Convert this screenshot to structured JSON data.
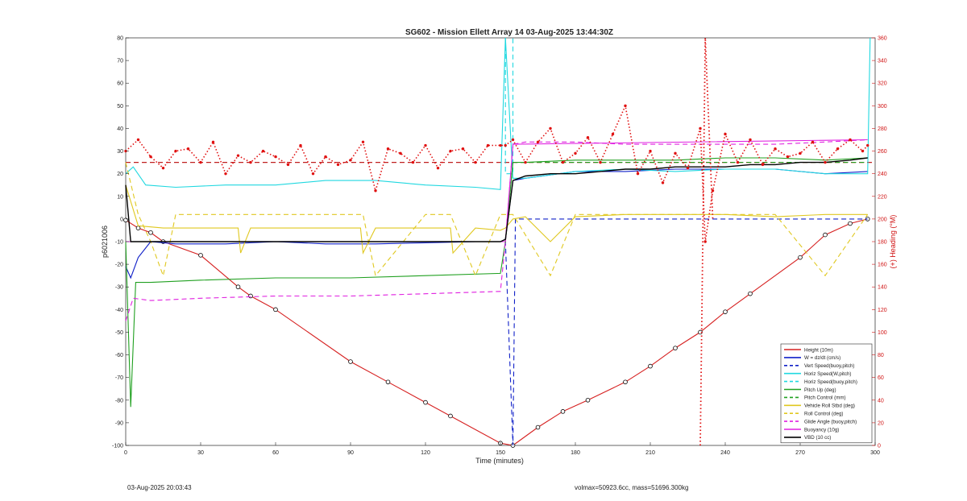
{
  "footer": {
    "timestamp": "03-Aug-2025 20:03:43",
    "vol_mass": "volmax=50923.6cc, mass=51696.300kg"
  },
  "chart_data": {
    "type": "line",
    "title": "SG602 - Mission Ellett Array 14 03-Aug-2025 13:44:30Z",
    "xlabel": "Time (minutes)",
    "ylabel": "p6021006",
    "y2label": "(+) Heading (°M)",
    "xlim": [
      0,
      300
    ],
    "ylim": [
      -100,
      80
    ],
    "y2lim": [
      0,
      360
    ],
    "xticks": [
      0,
      30,
      60,
      90,
      120,
      150,
      180,
      210,
      240,
      270,
      300
    ],
    "yticks": [
      -100,
      -90,
      -80,
      -70,
      -60,
      -50,
      -40,
      -30,
      -20,
      -10,
      0,
      10,
      20,
      30,
      40,
      50,
      60,
      70,
      80
    ],
    "y2ticks": [
      0,
      20,
      40,
      60,
      80,
      100,
      120,
      140,
      160,
      180,
      200,
      220,
      240,
      260,
      280,
      300,
      320,
      340,
      360
    ],
    "grid": false,
    "legend_position": "bottom-right",
    "series": [
      {
        "name": "Height (10m)",
        "color": "#d62020",
        "style": "solid",
        "markers": true,
        "x": [
          0,
          5,
          10,
          15,
          30,
          45,
          50,
          60,
          90,
          105,
          120,
          130,
          150,
          155,
          165,
          175,
          185,
          200,
          210,
          220,
          230,
          240,
          250,
          270,
          280,
          290,
          297
        ],
        "y": [
          -0.5,
          -4,
          -6,
          -10,
          -16,
          -30,
          -34,
          -40,
          -63,
          -72,
          -81,
          -87,
          -99,
          -100,
          -92,
          -85,
          -80,
          -72,
          -65,
          -57,
          -50,
          -41,
          -33,
          -17,
          -7,
          -2,
          0
        ]
      },
      {
        "name": "W = dz/dt (cm/s)",
        "color": "#1020c8",
        "style": "solid",
        "markers": false,
        "x": [
          0,
          2,
          5,
          10,
          20,
          40,
          60,
          80,
          100,
          120,
          140,
          150,
          152,
          155,
          160,
          180,
          200,
          220,
          240,
          260,
          280,
          297
        ],
        "y": [
          -21,
          -26,
          -17,
          -10,
          -11,
          -11,
          -10,
          -11,
          -11,
          -10.5,
          -10,
          -10,
          -9,
          17,
          18,
          21,
          21,
          22,
          22,
          22,
          20,
          21
        ]
      },
      {
        "name": "Vert Speed(buoy,pitch)",
        "color": "#1020c8",
        "style": "dashed",
        "markers": false,
        "x": [
          0,
          150,
          152,
          155,
          156,
          160,
          200,
          250,
          297
        ],
        "y": [
          -10,
          -10,
          -10,
          -100,
          0,
          0,
          0,
          0,
          0
        ]
      },
      {
        "name": "Horiz Speed(W,pitch)",
        "color": "#20d8e0",
        "style": "solid",
        "markers": false,
        "x": [
          0,
          3,
          8,
          20,
          40,
          60,
          80,
          100,
          120,
          140,
          150,
          152,
          155,
          160,
          180,
          200,
          220,
          240,
          260,
          280,
          297,
          298
        ],
        "y": [
          20,
          23,
          15,
          14,
          15,
          15,
          17,
          17,
          15,
          14,
          13,
          80,
          18,
          18,
          21,
          22,
          21,
          22,
          22,
          20,
          20,
          80
        ]
      },
      {
        "name": "Horiz Speed(buoy,pitch)",
        "color": "#20d8e0",
        "style": "dashed",
        "markers": false,
        "x": [
          152,
          152,
          153,
          155,
          155
        ],
        "y": [
          80,
          20,
          20,
          20,
          80
        ]
      },
      {
        "name": "Pitch Up (deg)",
        "color": "#20a020",
        "style": "solid",
        "markers": false,
        "x": [
          0,
          2,
          4,
          10,
          30,
          60,
          90,
          120,
          150,
          152,
          155,
          160,
          180,
          200,
          220,
          240,
          260,
          280,
          297
        ],
        "y": [
          -10,
          -83,
          -28,
          -28,
          -27,
          -26,
          -26,
          -25,
          -24,
          -10,
          25,
          25,
          26,
          26,
          26,
          27,
          27,
          26,
          27
        ]
      },
      {
        "name": "Pitch Control (mm)",
        "color": "#20a020",
        "style": "dashed",
        "markers": false,
        "x": [
          0,
          150,
          152,
          155,
          297
        ],
        "y": [
          -10,
          -10,
          -10,
          25,
          25
        ]
      },
      {
        "name": "Vehicle Roll Stbd (deg)",
        "color": "#e0c820",
        "style": "solid",
        "markers": false,
        "x": [
          0,
          5,
          15,
          30,
          45,
          46,
          50,
          60,
          90,
          94,
          95,
          100,
          120,
          130,
          131,
          140,
          150,
          152,
          155,
          160,
          170,
          180,
          200,
          220,
          240,
          260,
          280,
          297
        ],
        "y": [
          15,
          -3,
          -4,
          -4,
          -4,
          -15,
          -4,
          -4,
          -4,
          -4,
          -15,
          -4,
          -4,
          -4,
          -15,
          -4,
          -5,
          -4,
          0,
          1,
          -10,
          1,
          2,
          2,
          2,
          1,
          2,
          2
        ]
      },
      {
        "name": "Roll Control (deg)",
        "color": "#e0c820",
        "style": "dashed",
        "markers": false,
        "x": [
          0,
          5,
          10,
          15,
          20,
          45,
          50,
          60,
          90,
          95,
          100,
          120,
          130,
          140,
          150,
          152,
          155,
          170,
          180,
          200,
          220,
          240,
          260,
          280,
          297
        ],
        "y": [
          25,
          2,
          -10,
          -25,
          2,
          2,
          2,
          2,
          2,
          2,
          -25,
          2,
          2,
          -25,
          2,
          2,
          2,
          -25,
          2,
          2,
          2,
          2,
          2,
          -25,
          2
        ]
      },
      {
        "name": "Glide Angle (buoy,pitch)",
        "color": "#e020e0",
        "style": "dashed",
        "markers": false,
        "x": [
          0,
          3,
          10,
          30,
          60,
          90,
          120,
          150,
          152,
          155,
          160,
          180,
          200,
          220,
          240,
          260,
          280,
          297
        ],
        "y": [
          -45,
          -35,
          -36,
          -35,
          -34,
          -34,
          -33,
          -32,
          -10,
          33,
          34,
          34,
          33,
          33,
          33,
          33,
          34,
          35
        ]
      },
      {
        "name": "Buoyancy (10g)",
        "color": "#e020e0",
        "style": "solid",
        "markers": false,
        "x": [
          0,
          150,
          152,
          155,
          297
        ],
        "y": [
          -10,
          -10,
          -10,
          33,
          35
        ]
      },
      {
        "name": "VBD (10 cc)",
        "color": "#000000",
        "style": "solid",
        "markers": false,
        "x": [
          0,
          2,
          5,
          30,
          60,
          90,
          120,
          150,
          152,
          155,
          160,
          170,
          180,
          190,
          200,
          210,
          220,
          230,
          240,
          250,
          260,
          270,
          280,
          290,
          297
        ],
        "y": [
          15,
          -10,
          -10,
          -10,
          -10,
          -10,
          -10,
          -10,
          -9,
          17,
          19,
          20,
          20,
          21,
          22,
          22,
          23,
          23,
          23,
          24,
          24,
          25,
          25,
          26,
          27
        ]
      }
    ],
    "heading_series": {
      "name": "Heading",
      "color": "#e01010",
      "style": "dotted",
      "axis": "y2",
      "x": [
        0,
        5,
        10,
        15,
        20,
        25,
        30,
        35,
        40,
        45,
        50,
        55,
        60,
        65,
        70,
        75,
        80,
        85,
        90,
        95,
        100,
        105,
        110,
        115,
        120,
        125,
        130,
        135,
        140,
        145,
        150,
        152,
        155,
        160,
        165,
        170,
        175,
        180,
        185,
        190,
        195,
        200,
        205,
        210,
        215,
        220,
        225,
        230,
        232,
        235,
        240,
        245,
        250,
        255,
        260,
        265,
        270,
        275,
        280,
        285,
        290,
        295,
        297
      ],
      "y": [
        260,
        270,
        255,
        245,
        260,
        262,
        250,
        268,
        240,
        256,
        250,
        260,
        255,
        248,
        265,
        240,
        255,
        248,
        252,
        268,
        225,
        262,
        258,
        250,
        265,
        245,
        260,
        262,
        250,
        265,
        265,
        265,
        270,
        250,
        268,
        280,
        250,
        258,
        272,
        250,
        275,
        300,
        240,
        260,
        232,
        258,
        245,
        280,
        180,
        225,
        275,
        250,
        270,
        248,
        262,
        255,
        258,
        268,
        250,
        262,
        270,
        260,
        265
      ]
    },
    "heading_reference_line": {
      "axis": "y2",
      "value": 250,
      "color": "#c02020",
      "style": "dashed"
    },
    "heading_turn": {
      "x": [
        230,
        232,
        235
      ],
      "y": [
        0,
        360,
        200
      ]
    }
  }
}
